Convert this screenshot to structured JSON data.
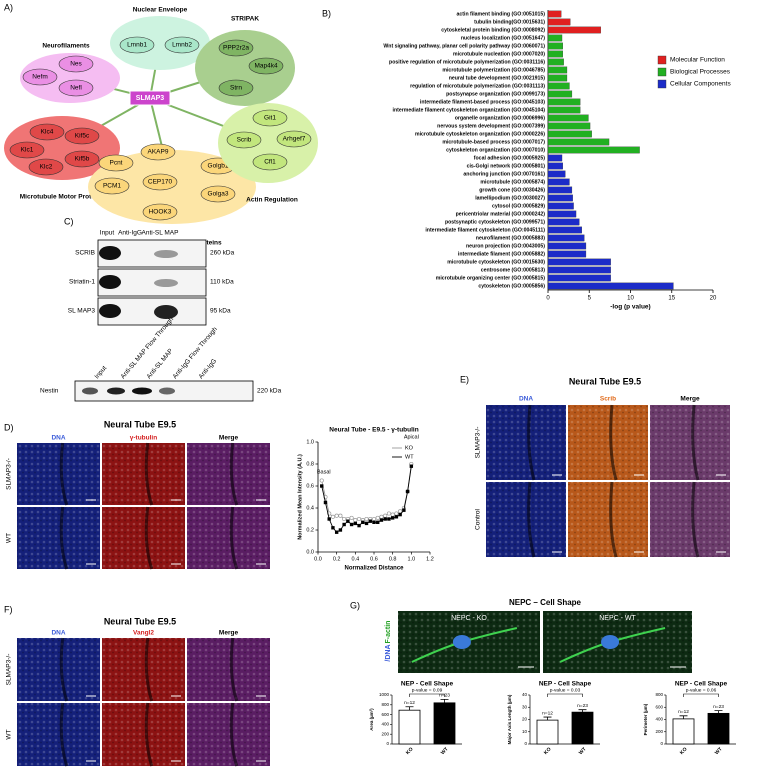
{
  "panels": {
    "A": {
      "label": "A)",
      "hub": "SLMAP3",
      "hub_color": "#cc44cc",
      "groups": [
        {
          "name": "Nuclear Envelope",
          "color": "#cdf3e0",
          "node_color": "#a9e6c9",
          "nodes": [
            "Lmnb1",
            "Lmnb2"
          ]
        },
        {
          "name": "STRIPAK",
          "color": "#a9cf8f",
          "node_color": "#7fb463",
          "nodes": [
            "PPP2r2a",
            "Map4k4",
            "Strn"
          ]
        },
        {
          "name": "Neurofilaments",
          "color": "#f5bdf2",
          "node_color": "#ea8fe4",
          "nodes": [
            "Nefm",
            "Nes",
            "Nefl"
          ]
        },
        {
          "name": "Microtubule Motor Proteins",
          "color": "#f07575",
          "node_color": "#e04848",
          "nodes": [
            "Klc4",
            "Kif5c",
            "Klc1",
            "Klc2",
            "Kif5b"
          ]
        },
        {
          "name": "Centrosomal and Golgi Proteins",
          "color": "#fde6a6",
          "node_color": "#fbd67a",
          "nodes": [
            "Pcnt",
            "AKAP9",
            "Golgb1",
            "PCM1",
            "CEP170",
            "Golga3",
            "HOOK3"
          ]
        },
        {
          "name": "Actin Regulation",
          "color": "#d8f1a9",
          "node_color": "#c2e67d",
          "nodes": [
            "Git1",
            "Scrib",
            "Arhgef7",
            "Cfl1"
          ]
        }
      ]
    },
    "B": {
      "label": "B)"
    },
    "C": {
      "label": "C)",
      "lanes": [
        "Input",
        "Anti-IgG",
        "Anti-SL MAP"
      ],
      "rows": [
        {
          "name": "SCRIB",
          "size": "260 kDa"
        },
        {
          "name": "Striatin-1",
          "size": "110 kDa"
        },
        {
          "name": "SL MAP3",
          "size": "95 kDa"
        }
      ],
      "lower": {
        "lanes": [
          "Input",
          "Anti-SL MAP Flow Through",
          "Anti-SL MAP",
          "Anti-IgG Flow Through",
          "Anti-IgG"
        ],
        "name": "Nestin",
        "size": "220 kDa"
      }
    },
    "D": {
      "label": "D)",
      "title": "Neural Tube E9.5",
      "channels": [
        "DNA",
        "γ-tubulin",
        "Merge"
      ],
      "channel_colors": [
        "#3a5bd9",
        "#d42020",
        "#000000"
      ],
      "image_colors": [
        "#14207a",
        "#8c1212",
        "#5a1d63"
      ],
      "rows": [
        "SLMAP3-/-",
        "WT"
      ]
    },
    "E": {
      "label": "E)",
      "title": "Neural Tube E9.5",
      "channels": [
        "DNA",
        "Scrib",
        "Merge"
      ],
      "channel_colors": [
        "#3a5bd9",
        "#e06a1a",
        "#000000"
      ],
      "image_colors": [
        "#14207a",
        "#b8581a",
        "#6a3a6a"
      ],
      "rows": [
        "SLMAP3-/-",
        "Control"
      ]
    },
    "F": {
      "label": "F)",
      "title": "Neural Tube E9.5",
      "channels": [
        "DNA",
        "Vangl2",
        "Merge"
      ],
      "channel_colors": [
        "#3a5bd9",
        "#d42020",
        "#000000"
      ],
      "image_colors": [
        "#14207a",
        "#8c1212",
        "#5a1d63"
      ],
      "rows": [
        "SLMAP3-/-",
        "WT"
      ]
    },
    "G": {
      "label": "G)",
      "title": "NEPC – Cell Shape",
      "images": [
        "NEPC - KO",
        "NEPC - WT"
      ],
      "stain": [
        "F-actin",
        "/DNA"
      ],
      "stain_colors": [
        "#22a022",
        "#3a5bd9"
      ]
    }
  },
  "chart_data": [
    {
      "type": "barh",
      "categories": [
        "actin filament binding (GO:0051015)",
        "tubulin binding(GO:0015631)",
        "cytoskeletal protein binding (GO:0008092)",
        "nucleus localization (GO:0051647)",
        "Wnt signaling pathway, planar cell polarity pathway (GO:0060071)",
        "microtubule nucleation (GO:0007020)",
        "positive regulation of microtubule polymerization (GO:0031116)",
        "microtubule polymerization (GO:0046785)",
        "neural tube development (GO:0021915)",
        "regulation of microtubule polymerization (GO:0031113)",
        "postsynapse organization (GO:0099173)",
        "intermediate filament-based process (GO:0045103)",
        "intermediate filament cytoskeleton organization (GO:0045104)",
        "organelle organization (GO:0006996)",
        "nervous system development (GO:0007399)",
        "microtubule cytoskeleton organization (GO:0000226)",
        "microtubule-based process (GO:0007017)",
        "cytoskeleton organization (GO:0007010)",
        "focal adhesion (GO:0005925)",
        "cis-Golgi network (GO:0005801)",
        "anchoring junction (GO:0070161)",
        "microtubule (GO:0005874)",
        "growth cone (GO:0030426)",
        "lamellipodium (GO:0030027)",
        "cytosol (GO:0005829)",
        "pericentriolar material (GO:0000242)",
        "postsynaptic cytoskeleton (GO:0099571)",
        "intermediate filament cytoskeleton (GO:0045111)",
        "neurofilament (GO:0005883)",
        "neuron projection (GO:0043005)",
        "intermediate filament (GO:0005882)",
        "microtubule cytoskeleton (GO:0015630)",
        "centrosome (GO:0005813)",
        "microtubule organizing center (GO:0005815)",
        "cytoskeleton (GO:0005856)"
      ],
      "series": [
        {
          "name": "Molecular Function",
          "color": "#e02020",
          "values": [
            1.6,
            2.7,
            6.4,
            null,
            null,
            null,
            null,
            null,
            null,
            null,
            null,
            null,
            null,
            null,
            null,
            null,
            null,
            null,
            null,
            null,
            null,
            null,
            null,
            null,
            null,
            null,
            null,
            null,
            null,
            null,
            null,
            null,
            null,
            null,
            null
          ]
        },
        {
          "name": "Biological Processes",
          "color": "#22b022",
          "values": [
            null,
            null,
            null,
            1.7,
            1.8,
            1.8,
            1.9,
            2.3,
            2.3,
            2.6,
            2.9,
            3.9,
            3.9,
            4.9,
            5.1,
            5.3,
            7.4,
            11.1,
            null,
            null,
            null,
            null,
            null,
            null,
            null,
            null,
            null,
            null,
            null,
            null,
            null,
            null,
            null,
            null,
            null
          ]
        },
        {
          "name": "Cellular Components",
          "color": "#1c2cc8",
          "values": [
            null,
            null,
            null,
            null,
            null,
            null,
            null,
            null,
            null,
            null,
            null,
            null,
            null,
            null,
            null,
            null,
            null,
            null,
            1.7,
            1.8,
            2.1,
            2.6,
            2.9,
            3.0,
            3.1,
            3.4,
            3.8,
            4.1,
            4.4,
            4.6,
            4.6,
            7.6,
            7.6,
            7.6,
            15.2
          ]
        }
      ],
      "xlim": [
        0,
        20
      ],
      "xticks": [
        0,
        5,
        10,
        15,
        20
      ],
      "xlabel": "-log (p value)",
      "legend": "upper right"
    },
    {
      "type": "line",
      "title": "Neural Tube - E9.5 - γ-tubulin",
      "x": [
        0.04,
        0.08,
        0.12,
        0.16,
        0.2,
        0.24,
        0.28,
        0.32,
        0.36,
        0.4,
        0.44,
        0.48,
        0.52,
        0.56,
        0.6,
        0.64,
        0.68,
        0.72,
        0.76,
        0.8,
        0.84,
        0.88,
        0.92,
        0.96,
        1.0
      ],
      "series": [
        {
          "name": "KO",
          "color": "#999999",
          "values": [
            0.65,
            0.5,
            0.35,
            0.32,
            0.33,
            0.33,
            0.3,
            0.3,
            0.31,
            0.29,
            0.3,
            0.29,
            0.3,
            0.3,
            0.3,
            0.31,
            0.32,
            0.33,
            0.35,
            0.34,
            0.35,
            0.37,
            0.4,
            0.55,
            0.8
          ]
        },
        {
          "name": "WT",
          "color": "#000000",
          "values": [
            0.6,
            0.45,
            0.3,
            0.22,
            0.18,
            0.2,
            0.25,
            0.28,
            0.25,
            0.26,
            0.24,
            0.27,
            0.26,
            0.28,
            0.27,
            0.27,
            0.29,
            0.3,
            0.3,
            0.31,
            0.32,
            0.34,
            0.38,
            0.55,
            0.78
          ]
        }
      ],
      "xlim": [
        0,
        1.2
      ],
      "xticks": [
        {
          "value": 0,
          "label": "0.0"
        },
        0.2,
        0.4,
        0.6,
        0.8,
        {
          "value": 1,
          "label": "1.0"
        },
        1.2
      ],
      "ylim": [
        0,
        1
      ],
      "yticks": [
        {
          "value": 0,
          "label": "0.0"
        },
        0.2,
        0.4,
        0.6,
        0.8,
        {
          "value": 1,
          "label": "1.0"
        }
      ],
      "xlabel": "Normalized Distance",
      "ylabel": "Normalized Mean Intensity (A.U.)",
      "annotations": [
        "Basal",
        "Apical"
      ],
      "legend": "upper right"
    },
    {
      "type": "bar",
      "title": "NEP - Cell Shape",
      "categories": [
        "KO",
        "WT"
      ],
      "values": [
        690,
        840
      ],
      "errors": [
        70,
        70
      ],
      "colors": [
        "#ffffff",
        "#000000"
      ],
      "annotations": [
        "n=12",
        "n=23"
      ],
      "pvalue": "p-value = 0.09",
      "ylabel": "Area (µm²)",
      "ylim": [
        0,
        1000
      ],
      "yticks": [
        0,
        200,
        400,
        600,
        800,
        1000
      ]
    },
    {
      "type": "bar",
      "title": "NEP - Cell Shape",
      "categories": [
        "KO",
        "WT"
      ],
      "values": [
        19.5,
        26
      ],
      "errors": [
        2.5,
        2
      ],
      "colors": [
        "#ffffff",
        "#000000"
      ],
      "annotations": [
        "n=12",
        "n=23"
      ],
      "pvalue": "p-value = 0.03",
      "ylabel": "Major Axis Length (µm)",
      "ylim": [
        0,
        40
      ],
      "yticks": [
        0,
        10,
        20,
        30,
        40
      ]
    },
    {
      "type": "bar",
      "title": "NEP - Cell Shape",
      "categories": [
        "KO",
        "WT"
      ],
      "values": [
        410,
        500
      ],
      "errors": [
        50,
        45
      ],
      "colors": [
        "#ffffff",
        "#000000"
      ],
      "annotations": [
        "n=12",
        "n=23"
      ],
      "pvalue": "p-value = 0.06",
      "ylabel": "Perimeter (µm)",
      "ylim": [
        0,
        800
      ],
      "yticks": [
        0,
        200,
        400,
        600,
        800
      ]
    }
  ]
}
